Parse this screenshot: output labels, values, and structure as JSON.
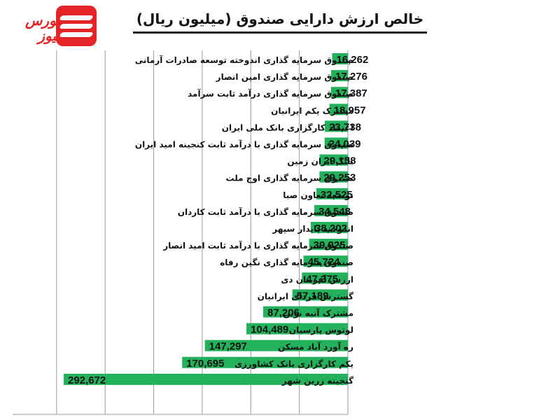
{
  "logo": {
    "text": "بورس نیوز"
  },
  "chart_data": {
    "type": "bar",
    "orientation": "horizontal",
    "title": "خالص ارزش دارایی صندوق (میلیون ریال)",
    "categories": [
      "صندوق سرمایه گذاری اندوخته توسعه صادرات آرمانی",
      "صندوق سرمایه گذاری امین انصار",
      "صندوق سرمایه گذاری درآمد ثابت سرآمد",
      "مشترک یکم ایرانیان",
      "اعتماد کارگزاری بانک ملی ایران",
      "صندوق سرمایه گذاری با درآمد ثابت کنجینه امید ایران",
      "بانک ایران زمین",
      "صندوق سرمایه گذاری اوج ملت",
      "توسعه تعاون صبا",
      "صندوق سرمایه گذاری با درآمد ثابت کاردان",
      "اندوخته پایدار سپهر",
      "صندوق سرمایه گذاری با درآمد ثابت امید انصار",
      "صندوق سرمایه گذاری نگین رفاه",
      "ارزش آفرینان دی",
      "گسترش فردای ایرانیان",
      "مشترک آتیه نوین",
      "لوتوس پارسیان",
      "ره آورد آباد مسکن",
      "یکم کارگزاری بانک کشاورزی",
      "گنجینه زرین شهر"
    ],
    "values": [
      16262,
      17276,
      17387,
      18957,
      23738,
      24039,
      29158,
      29253,
      32525,
      34548,
      38202,
      39925,
      45724,
      47375,
      57189,
      87206,
      104489,
      147297,
      170695,
      292672
    ],
    "value_labels": [
      "16,262",
      "17,276",
      "17,387",
      "18,957",
      "23,738",
      "24,039",
      "29,158",
      "29,253",
      "32,525",
      "34,548",
      "38,202",
      "39,925",
      "45,724",
      "47,375",
      "57,189",
      "87,206",
      "104,489",
      "147,297",
      "170,695",
      "292,672"
    ],
    "xlim": [
      0,
      330000
    ],
    "grid": true,
    "legend": "none",
    "colors": {
      "bar": "#23b25b",
      "grid": "#9a9a9a",
      "text": "#111111",
      "logo": "#e52427"
    }
  }
}
